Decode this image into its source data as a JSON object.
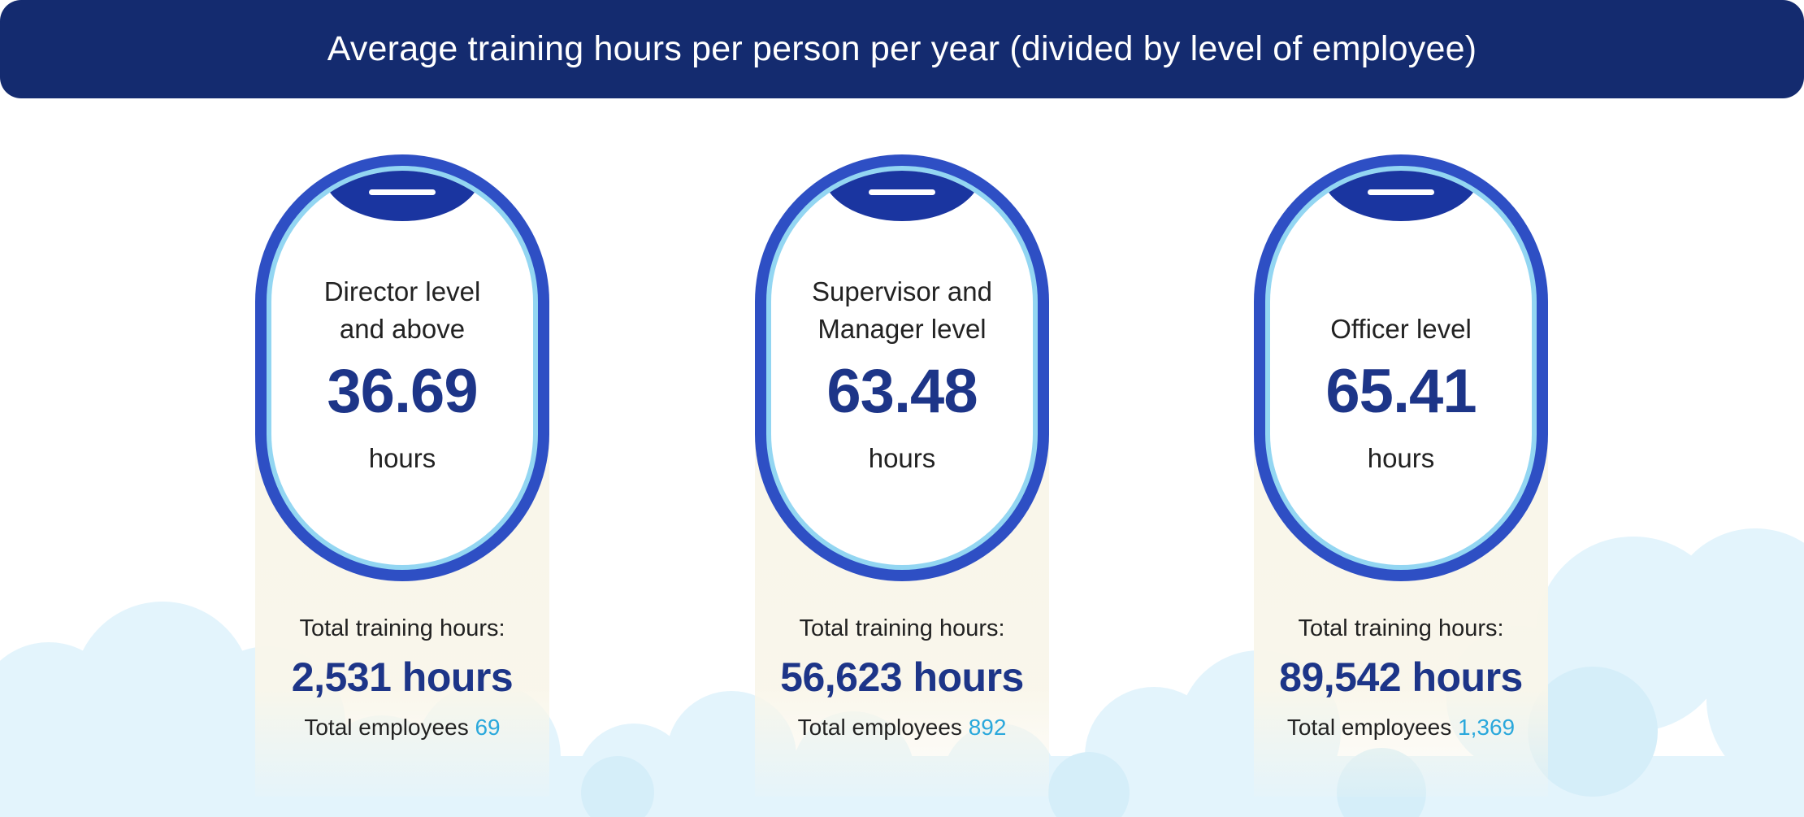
{
  "header": {
    "title": "Average training hours per person per year (divided by level of employee)"
  },
  "colors": {
    "header_bg": "#142b6f",
    "window_frame": "#2e4fc4",
    "window_rim": "#93d6f2",
    "primary_text": "#1d3588",
    "accent": "#2aa8dc",
    "card_bg": "#f9f6ea",
    "cloud": "#e3f4fc"
  },
  "cards": [
    {
      "level_line1": "Director level",
      "level_line2": "and above",
      "average": "36.69",
      "unit": "hours",
      "total_label": "Total training hours:",
      "total_value": "2,531 hours",
      "employees_label": "Total employees",
      "employees_count": "69"
    },
    {
      "level_line1": "Supervisor and",
      "level_line2": "Manager level",
      "average": "63.48",
      "unit": "hours",
      "total_label": "Total training hours:",
      "total_value": "56,623 hours",
      "employees_label": "Total employees",
      "employees_count": "892"
    },
    {
      "level_line1": "",
      "level_line2": "Officer level",
      "average": "65.41",
      "unit": "hours",
      "total_label": "Total training hours:",
      "total_value": "89,542 hours",
      "employees_label": "Total employees",
      "employees_count": "1,369"
    }
  ]
}
